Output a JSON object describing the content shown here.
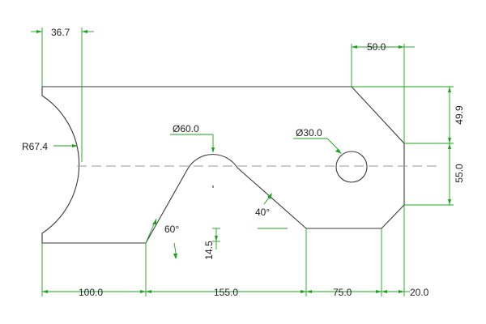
{
  "drawing": {
    "colors": {
      "outline": "#3a3a3a",
      "dimension": "#1aa31a",
      "centerline": "#9a9a9a",
      "text": "#222222",
      "background": "#ffffff"
    },
    "dimensions": {
      "top_left_offset": "36.7",
      "top_right_width": "50.0",
      "right_upper_height": "49.9",
      "right_lower_height": "55.0",
      "radius_left": "R67.4",
      "notch_diameter": "Ø60.0",
      "hole_diameter": "Ø30.0",
      "angle_left": "60°",
      "angle_right": "40°",
      "small_height": "14.5",
      "bottom_1": "100.0",
      "bottom_2": "155.0",
      "bottom_3": "75.0",
      "bottom_4": "20.0"
    }
  }
}
